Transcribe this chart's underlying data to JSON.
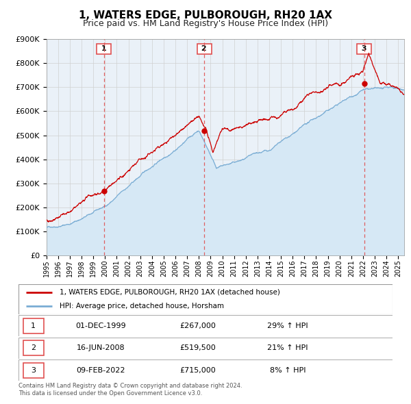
{
  "title": "1, WATERS EDGE, PULBOROUGH, RH20 1AX",
  "subtitle": "Price paid vs. HM Land Registry's House Price Index (HPI)",
  "legend_line1": "1, WATERS EDGE, PULBOROUGH, RH20 1AX (detached house)",
  "legend_line2": "HPI: Average price, detached house, Horsham",
  "transactions": [
    {
      "num": 1,
      "date": "01-DEC-1999",
      "price": "£267,000",
      "pct": "29% ↑ HPI"
    },
    {
      "num": 2,
      "date": "16-JUN-2008",
      "price": "£519,500",
      "pct": "21% ↑ HPI"
    },
    {
      "num": 3,
      "date": "09-FEB-2022",
      "price": "£715,000",
      "pct": "8% ↑ HPI"
    }
  ],
  "transaction_dates_decimal": [
    1999.917,
    2008.458,
    2022.108
  ],
  "transaction_prices": [
    267000,
    519500,
    715000
  ],
  "footer": "Contains HM Land Registry data © Crown copyright and database right 2024.\nThis data is licensed under the Open Government Licence v3.0.",
  "ylim": [
    0,
    900000
  ],
  "yticks": [
    0,
    100000,
    200000,
    300000,
    400000,
    500000,
    600000,
    700000,
    800000,
    900000
  ],
  "xlim_start": 1995.0,
  "xlim_end": 2025.5,
  "xticks": [
    1995,
    1996,
    1997,
    1998,
    1999,
    2000,
    2001,
    2002,
    2003,
    2004,
    2005,
    2006,
    2007,
    2008,
    2009,
    2010,
    2011,
    2012,
    2013,
    2014,
    2015,
    2016,
    2017,
    2018,
    2019,
    2020,
    2021,
    2022,
    2023,
    2024,
    2025
  ],
  "red_line_color": "#cc0000",
  "blue_line_color": "#7aadd4",
  "blue_fill_color": "#d6e8f5",
  "vline_color": "#e05050",
  "grid_color": "#d0d0d0",
  "plot_bg_color": "#eaf1f8",
  "title_fontsize": 11,
  "subtitle_fontsize": 9
}
